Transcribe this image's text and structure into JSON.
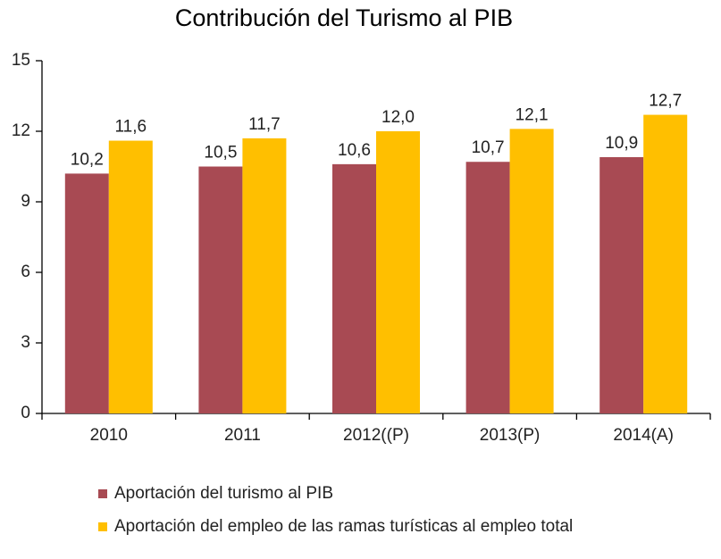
{
  "chart_data": {
    "type": "bar",
    "title": "Contribución del Turismo al PIB",
    "categories": [
      "2010",
      "2011",
      "2012((P)",
      "2013(P)",
      "2014(A)"
    ],
    "series": [
      {
        "name": "Aportación del turismo al PIB",
        "color": "#a84a53",
        "values": [
          10.2,
          10.5,
          10.6,
          10.7,
          10.9
        ],
        "value_labels": [
          "10,2",
          "10,5",
          "10,6",
          "10,7",
          "10,9"
        ]
      },
      {
        "name": "Aportación del empleo de las ramas turísticas al empleo total",
        "color": "#ffbf00",
        "values": [
          11.6,
          11.7,
          12.0,
          12.1,
          12.7
        ],
        "value_labels": [
          "11,6",
          "11,7",
          "12,0",
          "12,1",
          "12,7"
        ]
      }
    ],
    "ylim": [
      0,
      15
    ],
    "yticks": [
      0,
      3,
      6,
      9,
      12,
      15
    ],
    "grid": false
  }
}
